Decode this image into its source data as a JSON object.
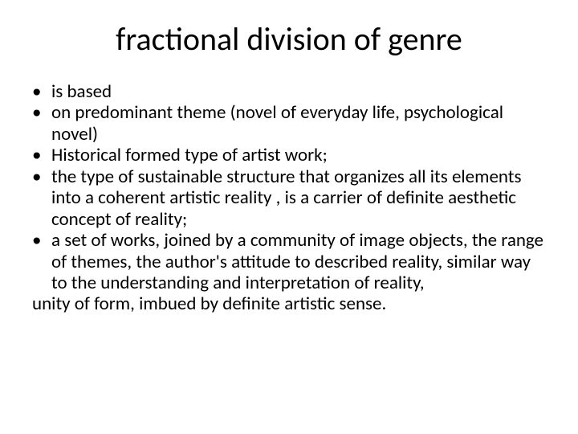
{
  "slide": {
    "title": "fractional division of genre",
    "title_fontsize": 40,
    "title_color": "#000000",
    "body_fontsize": 23,
    "body_color": "#000000",
    "background_color": "#ffffff",
    "bullet_char": "•",
    "bullets": [
      "is based",
      " on predominant theme (novel of everyday life, psychological novel)",
      "Historical  formed type of artist work;",
      "the type of sustainable structure that organizes all its elements into a coherent artistic reality , is a carrier of definite aesthetic concept of reality;",
      "a set of works, joined by a community of image objects, the range of themes, the author's attitude to described reality, similar way to the understanding and interpretation of reality,"
    ],
    "trailing_text": " unity of form, imbued by definite artistic sense."
  }
}
